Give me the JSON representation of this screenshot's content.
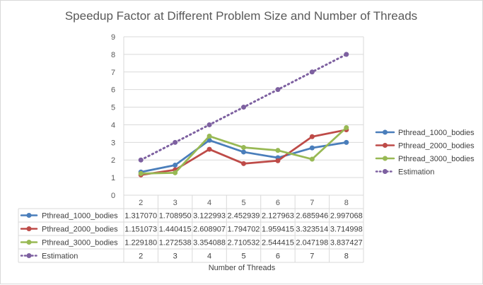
{
  "chart_data": {
    "type": "line",
    "title": "Speedup Factor at Different Problem Size and Number of Threads",
    "xlabel": "Number of Threads",
    "ylabel": "",
    "categories": [
      "2",
      "3",
      "4",
      "5",
      "6",
      "7",
      "8"
    ],
    "ylim": [
      0,
      9
    ],
    "yticks": [
      "0",
      "1",
      "2",
      "3",
      "4",
      "5",
      "6",
      "7",
      "8",
      "9"
    ],
    "grid": true,
    "legend": "right",
    "data_table": true,
    "series": [
      {
        "name": "Pthread_1000_bodies",
        "color": "#4a7ebb",
        "style": "solid",
        "values": [
          1.31707,
          1.70895,
          3.122993,
          2.452939,
          2.127963,
          2.685946,
          2.997068
        ],
        "labels": [
          "1.317070",
          "1.708950",
          "3.122993",
          "2.452939",
          "2.127963",
          "2.685946",
          "2.997068"
        ]
      },
      {
        "name": "Pthread_2000_bodies",
        "color": "#be4b48",
        "style": "solid",
        "values": [
          1.151073,
          1.440415,
          2.608907,
          1.794702,
          1.959415,
          3.323514,
          3.714998
        ],
        "labels": [
          "1.151073",
          "1.440415",
          "2.608907",
          "1.794702",
          "1.959415",
          "3.323514",
          "3.714998"
        ]
      },
      {
        "name": "Pthread_3000_bodies",
        "color": "#98b954",
        "style": "solid",
        "values": [
          1.22918,
          1.272538,
          3.354088,
          2.710532,
          2.544415,
          2.047198,
          3.837427
        ],
        "labels": [
          "1.229180",
          "1.272538",
          "3.354088",
          "2.710532",
          "2.544415",
          "2.047198",
          "3.837427"
        ]
      },
      {
        "name": "Estimation",
        "color": "#7d60a0",
        "style": "dotted",
        "values": [
          2,
          3,
          4,
          5,
          6,
          7,
          8
        ],
        "labels": [
          "2",
          "3",
          "4",
          "5",
          "6",
          "7",
          "8"
        ]
      }
    ]
  }
}
